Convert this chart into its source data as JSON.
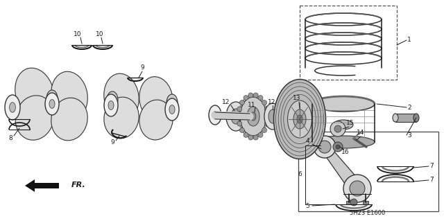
{
  "bg_color": "#ffffff",
  "fig_width": 6.4,
  "fig_height": 3.19,
  "diagram_code": "5H23 E1600",
  "line_color": "#1a1a1a",
  "label_fontsize": 6.5,
  "dpi": 100
}
